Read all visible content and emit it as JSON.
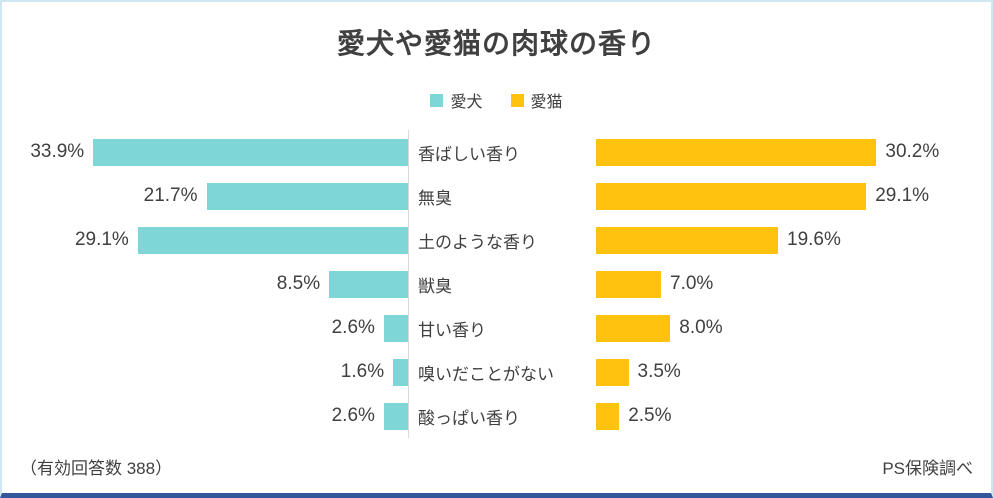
{
  "title": "愛犬や愛猫の肉球の香り",
  "legend": [
    {
      "label": "愛犬",
      "color": "#7ed6d6"
    },
    {
      "label": "愛猫",
      "color": "#ffc20e"
    }
  ],
  "footer": {
    "left": "（有効回答数 388）",
    "right": "PS保険調べ"
  },
  "chart_data": {
    "type": "bar",
    "orientation": "horizontal-diverging",
    "title": "愛犬や愛猫の肉球の香り",
    "categories": [
      "香ばしい香り",
      "無臭",
      "土のような香り",
      "獣臭",
      "甘い香り",
      "嗅いだことがない",
      "酸っぱい香り"
    ],
    "series": [
      {
        "name": "愛犬",
        "color": "#7ed6d6",
        "values": [
          33.9,
          21.7,
          29.1,
          8.5,
          2.6,
          1.6,
          2.6
        ],
        "labels": [
          "33.9%",
          "21.7%",
          "29.1%",
          "8.5%",
          "2.6%",
          "1.6%",
          "2.6%"
        ]
      },
      {
        "name": "愛猫",
        "color": "#ffc20e",
        "values": [
          30.2,
          29.1,
          19.6,
          7.0,
          8.0,
          3.5,
          2.5
        ],
        "labels": [
          "30.2%",
          "29.1%",
          "19.6%",
          "7.0%",
          "8.0%",
          "3.5%",
          "2.5%"
        ]
      }
    ],
    "value_suffix": "%",
    "xmax": 35,
    "grid": false,
    "legend_position": "top-center"
  }
}
